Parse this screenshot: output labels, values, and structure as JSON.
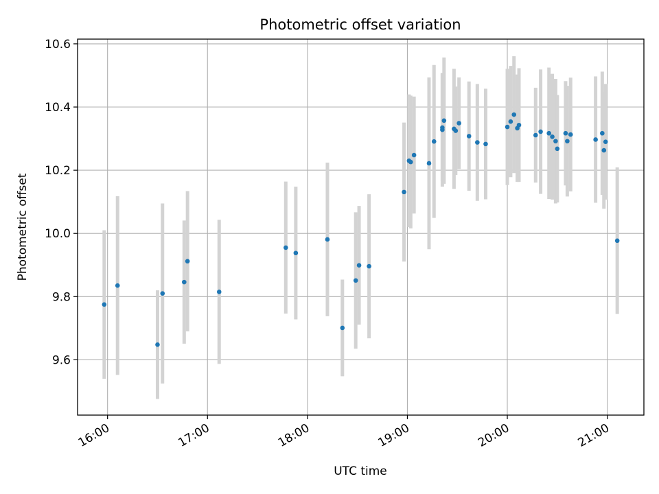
{
  "chart_data": {
    "type": "scatter",
    "title": "Photometric offset variation",
    "xlabel": "UTC time",
    "ylabel": "Photometric offset",
    "x_ticks": [
      "16:00",
      "17:00",
      "18:00",
      "19:00",
      "20:00",
      "21:00"
    ],
    "y_ticks": [
      "9.6",
      "9.8",
      "10.0",
      "10.2",
      "10.4",
      "10.6"
    ],
    "xlim": [
      "15:42",
      "21:22"
    ],
    "ylim": [
      9.425,
      10.615
    ],
    "grid": true,
    "colors": {
      "points": "#1f77b4",
      "error_bars": "#d3d3d3",
      "grid": "#b0b0b0"
    },
    "series": [
      {
        "x": [
          "15:58",
          "16:06",
          "16:30",
          "16:33",
          "16:46",
          "16:48",
          "17:07",
          "17:47",
          "17:53",
          "18:12",
          "18:21",
          "18:29",
          "18:31",
          "18:37",
          "18:58",
          "19:01",
          "19:02",
          "19:04",
          "19:13",
          "19:16",
          "19:21",
          "19:21",
          "19:22",
          "19:28",
          "19:29",
          "19:31",
          "19:37",
          "19:42",
          "19:47",
          "20:00",
          "20:02",
          "20:04",
          "20:06",
          "20:07",
          "20:17",
          "20:20",
          "20:25",
          "20:27",
          "20:29",
          "20:30",
          "20:35",
          "20:36",
          "20:38",
          "20:53",
          "20:57",
          "20:58",
          "20:59",
          "21:06"
        ],
        "y": [
          9.775,
          9.835,
          9.648,
          9.81,
          9.846,
          9.912,
          9.815,
          9.955,
          9.938,
          9.981,
          9.701,
          9.851,
          9.899,
          9.896,
          10.131,
          10.23,
          10.226,
          10.248,
          10.222,
          10.291,
          10.328,
          10.335,
          10.357,
          10.331,
          10.325,
          10.349,
          10.308,
          10.288,
          10.283,
          10.337,
          10.354,
          10.376,
          10.333,
          10.343,
          10.311,
          10.322,
          10.317,
          10.306,
          10.292,
          10.268,
          10.317,
          10.292,
          10.313,
          10.297,
          10.317,
          10.263,
          10.29,
          9.977
        ],
        "err": [
          0.235,
          0.283,
          0.172,
          0.285,
          0.195,
          0.222,
          0.228,
          0.209,
          0.21,
          0.243,
          0.153,
          0.216,
          0.188,
          0.228,
          0.22,
          0.21,
          0.21,
          0.185,
          0.272,
          0.242,
          0.18,
          0.17,
          0.2,
          0.19,
          0.14,
          0.145,
          0.173,
          0.185,
          0.175,
          0.184,
          0.176,
          0.185,
          0.17,
          0.18,
          0.15,
          0.197,
          0.208,
          0.199,
          0.197,
          0.17,
          0.165,
          0.175,
          0.18,
          0.2,
          0.195,
          0.185,
          0.183,
          0.232
        ]
      }
    ]
  }
}
